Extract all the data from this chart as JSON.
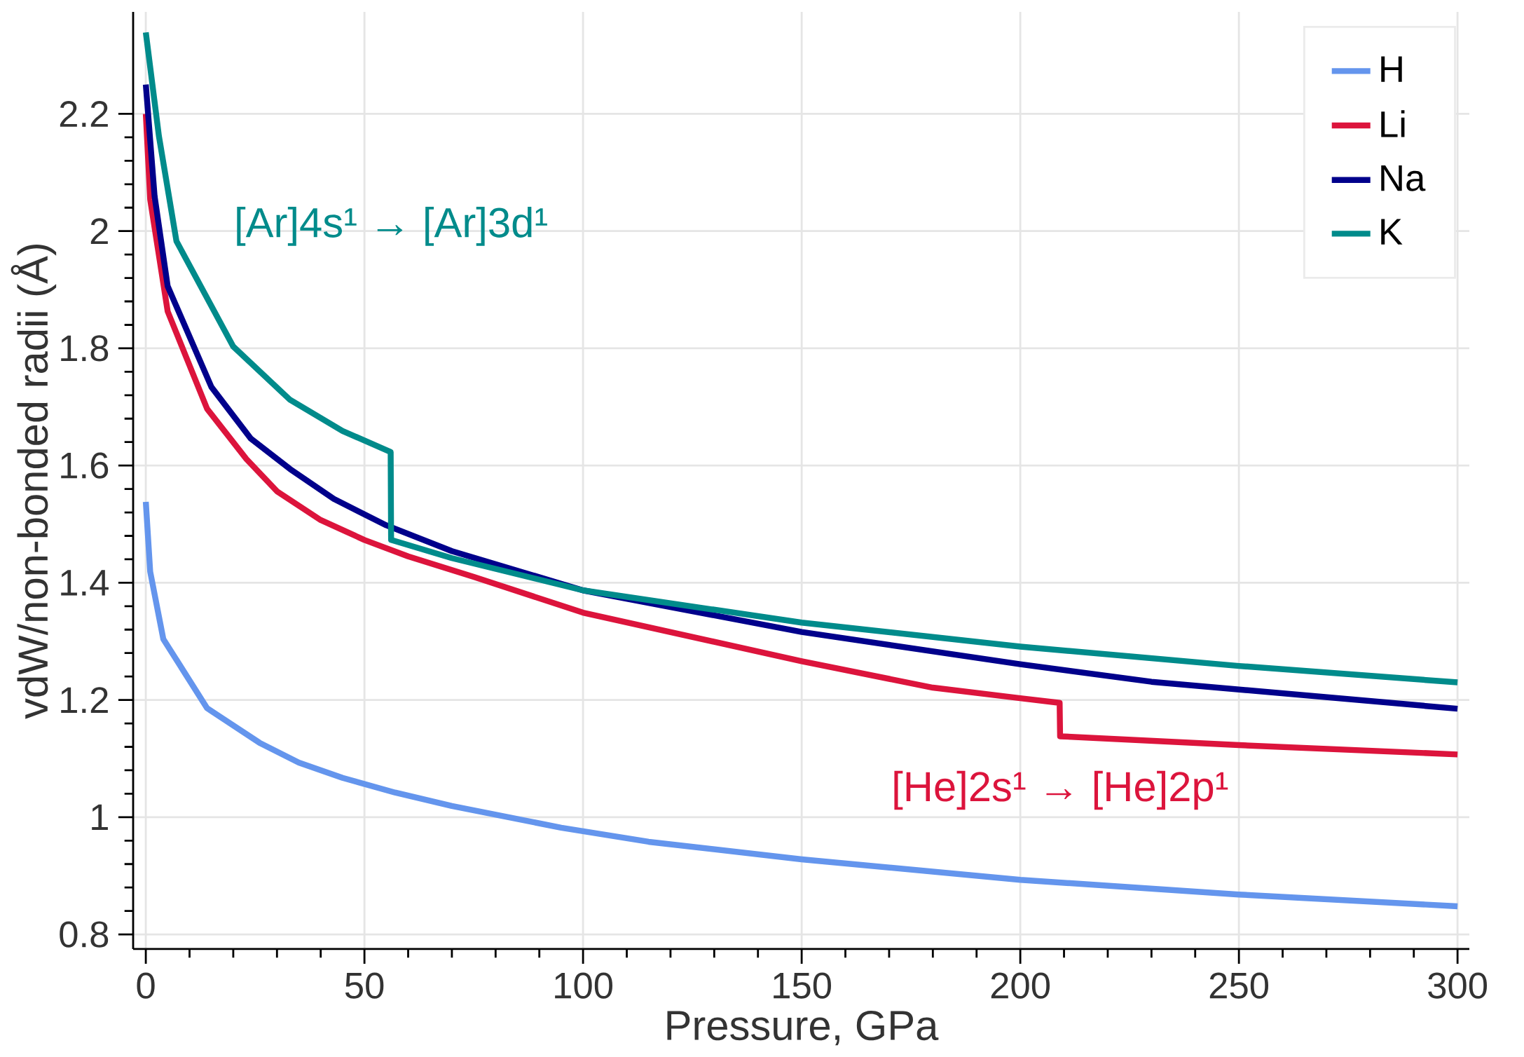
{
  "chart_data": {
    "type": "line",
    "xlabel": "Pressure, GPa",
    "ylabel": "vdW/non-bonded radii (Å)",
    "xlim": [
      -2.9,
      302.7
    ],
    "ylim": [
      0.775,
      2.374
    ],
    "xticks": [
      0,
      50,
      100,
      150,
      200,
      250,
      300
    ],
    "yticks": [
      0.8,
      1,
      1.2,
      1.4,
      1.6,
      1.8,
      2,
      2.2
    ],
    "grid": true,
    "legend": "top right",
    "line_style": "solid",
    "marker": "none",
    "series": [
      {
        "name": "H",
        "color": "#6495ed",
        "x": [
          0,
          1,
          4,
          14,
          26,
          35,
          45,
          57,
          70,
          95,
          115,
          150,
          200,
          250,
          300
        ],
        "values": [
          1.538,
          1.419,
          1.304,
          1.186,
          1.127,
          1.093,
          1.067,
          1.042,
          1.019,
          0.982,
          0.958,
          0.928,
          0.893,
          0.868,
          0.848
        ]
      },
      {
        "name": "Li",
        "color": "#dc143c",
        "x": [
          0,
          1,
          5,
          14,
          23,
          30,
          40,
          50,
          60,
          75,
          100,
          150,
          180,
          200,
          209,
          209.1,
          250,
          300
        ],
        "values": [
          2.2,
          2.054,
          1.863,
          1.697,
          1.611,
          1.556,
          1.507,
          1.473,
          1.445,
          1.41,
          1.349,
          1.266,
          1.221,
          1.203,
          1.195,
          1.138,
          1.123,
          1.107
        ]
      },
      {
        "name": "Na",
        "color": "#00008b",
        "x": [
          0,
          2,
          5,
          15,
          24,
          33,
          43,
          55,
          70,
          100,
          150,
          200,
          230,
          300
        ],
        "values": [
          2.25,
          2.06,
          1.906,
          1.734,
          1.646,
          1.594,
          1.543,
          1.498,
          1.454,
          1.387,
          1.316,
          1.261,
          1.231,
          1.185
        ]
      },
      {
        "name": "K",
        "color": "#008b8b",
        "x": [
          0,
          3,
          7,
          20,
          33,
          45,
          56,
          56.1,
          70,
          100,
          150,
          200,
          250,
          300
        ],
        "values": [
          2.339,
          2.162,
          1.983,
          1.803,
          1.712,
          1.659,
          1.623,
          1.473,
          1.442,
          1.387,
          1.332,
          1.291,
          1.258,
          1.23
        ]
      }
    ],
    "annotations": [
      "[Ar]4s¹ → [Ar]3d¹",
      "[He]2s¹ → [He]2p¹"
    ]
  }
}
